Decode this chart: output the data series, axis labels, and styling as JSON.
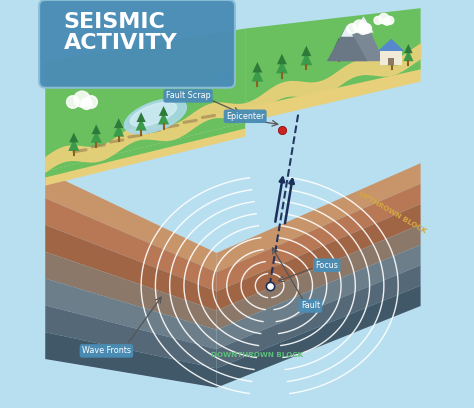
{
  "title": "SEISMIC\nACTIVITY",
  "title_color": "#FFFFFF",
  "title_bg_color": "#4A8DB5",
  "bg_color": "#B8DFF0",
  "labels": {
    "fault_scrap": "Fault Scrap",
    "epicenter": "Epicenter",
    "focus": "Focus",
    "fault": "Fault",
    "wave_fronts": "Wave Fronts",
    "upthrown": "UPTHROWN BLOCK",
    "downthrown": "DOWNTHROWN BLOCK"
  },
  "label_bg": "#4A8DB5",
  "upthrown_color": "#D4A843",
  "downthrown_color": "#5DBE7A",
  "layer_colors": [
    "#C8956A",
    "#B87855",
    "#A06545",
    "#8C7868",
    "#6B7E8A",
    "#556878",
    "#405868"
  ],
  "grass_color": "#6ABF5E",
  "grass_dark": "#4A9B45",
  "sand_color": "#E8D07A",
  "wave_color": "#FFFFFF",
  "fault_line_color": "#1C2E5A",
  "epicenter_color": "#CC2222",
  "arrow_color": "#1C2E5A",
  "sky_color": "#C5E8F5",
  "lake_color": "#A8D8E8"
}
